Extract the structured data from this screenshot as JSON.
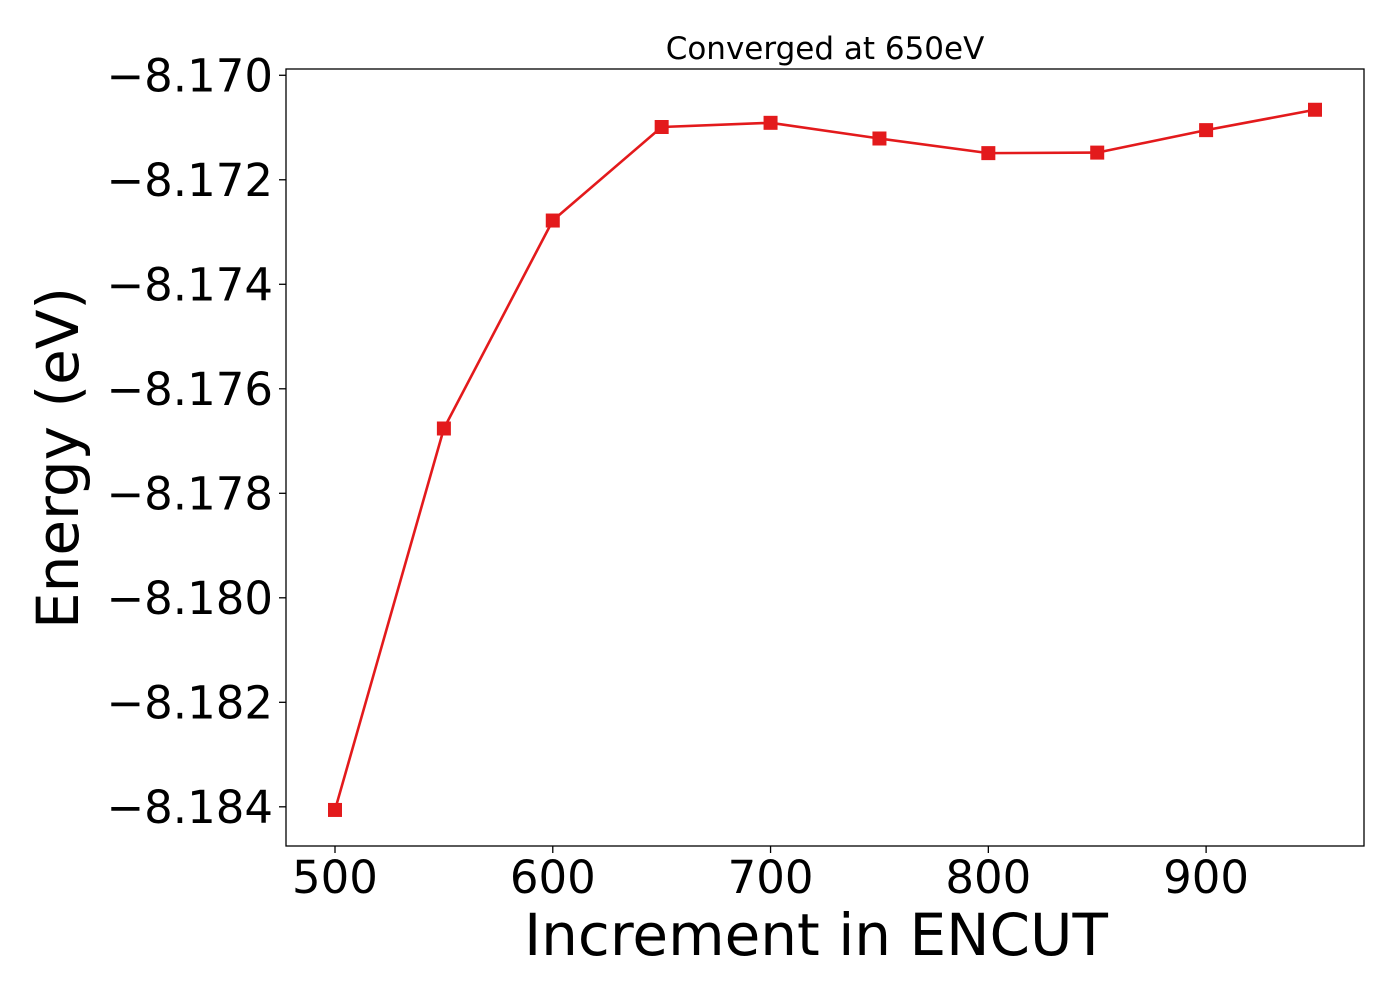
{
  "chart_data": {
    "type": "line",
    "title": "Converged at 650eV",
    "xlabel": "Increment in ENCUT",
    "ylabel": "Energy (eV)",
    "x": [
      500,
      550,
      600,
      650,
      700,
      750,
      800,
      850,
      900,
      950
    ],
    "series": [
      {
        "values": [
          -8.18406,
          -8.17676,
          -8.17278,
          -8.17099,
          -8.17091,
          -8.17121,
          -8.17149,
          -8.17148,
          -8.17105,
          -8.17066
        ],
        "color": "#e31a1c",
        "marker": "square"
      }
    ],
    "xticks": [
      "500",
      "600",
      "700",
      "800",
      "900"
    ],
    "xtick_values": [
      500,
      600,
      700,
      800,
      900
    ],
    "yticks": [
      "−8.170",
      "−8.172",
      "−8.174",
      "−8.176",
      "−8.178",
      "−8.180",
      "−8.182",
      "−8.184"
    ],
    "ytick_values": [
      -8.17,
      -8.172,
      -8.174,
      -8.176,
      -8.178,
      -8.18,
      -8.182,
      -8.184
    ],
    "xlim": [
      477.5,
      972.5
    ],
    "ylim": [
      -8.18475,
      -8.16988
    ],
    "grid": false,
    "legend": false
  }
}
